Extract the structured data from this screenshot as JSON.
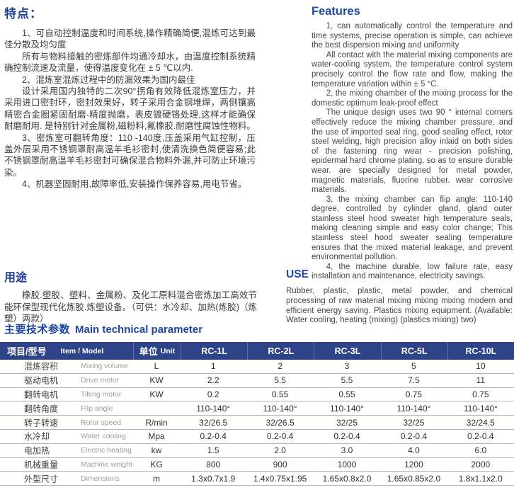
{
  "colors": {
    "heading_blue_cn": "#1e3f96",
    "heading_blue_en": "#1c4aa4",
    "table_header_bg": "#2e4388",
    "table_header_text": "#ffffff",
    "row_divider": "#a6b3c9",
    "body_text": "#3c3c3c",
    "muted_label": "#9d9d9d"
  },
  "features_cn": {
    "heading": "特点：",
    "paragraphs": [
      "1、可自动控制温度和时间系统,操作精确简便,混炼可达到最佳分散及均匀度",
      "所有与物料接触的密炼部件均通冷却水，由温度控制系统精确控制流速及流量，使得温度变化在 ± 5 ℃以内.",
      "2、混炼室混炼过程中的防漏效果为国内最佳",
      "设计采用国内独特的二次90°拐角有效降低混炼室压力，并采用进口密封环，密封效果好，转子采用合金钢堆焊，两侧镶高精密合金圈紧固耐磨-精度抛磨，表皮镀硬铬处理,这样才能确保耐磨耐用. 是特别针对金属粉,磁粉料,氟橡胶.耐磨性腐蚀性物料。",
      "3、密炼室可翻转角度：110 -140度,压盖采用气缸控制，压盖外层采用不锈钢罩耐高温羊毛衫密封,使清洗换色简便容易;此不锈钢罩耐高温羊毛衫密封可确保混合物料外漏,并可防止环境污染。",
      "4、机器坚固耐用,故障率低,安装操作保养容易,用电节省。"
    ]
  },
  "features_en": {
    "heading": "Features",
    "paragraphs": [
      "1, can automatically control the temperature and time systems, precise operation is simple, can achieve the best dispersion mixing and uniformity",
      "All contact with the material mixing components are water-cooling system, the temperature control system precisely control the flow rate and flow, making the temperature variation within ± 5 °C.",
      "2, the mixing chamber of the mixing process for the domestic optimum leak-proof effect",
      "The unique design uses two 90 ° internal corners effectively reduce the mixing chamber pressure, and the use of imported seal ring, good sealing effect, rotor steel welding, high precision alloy inlaid on both sides of the fastening ring wear - precision polishing, epidermal hard chrome plating, so as to ensure durable wear. are specially designed for metal powder, magnetic materials, fluorine rubber. wear corrosive materials.",
      "3, the mixing chamber can flip angle: 110-140 degree, controlled by cylinder gland, gland outer stainless steel hood sweater high temperature seals, making cleaning simple and easy color change; This stainless steel hood sweater sealing temperature ensures that the mixed material leakage, and prevent environmental pollution.",
      "4, the machine durable, low failure rate, easy installation and maintenance, electricity savings."
    ]
  },
  "use_cn": {
    "heading": "用途",
    "paragraph": "橡胶.塑胶、塑料、金属粉、及化工原料混合密炼加工高效节能环保型现代化炼胶.炼塑设备。（可供：水冷却、加热(炼胶)（炼塑）两款）"
  },
  "use_en": {
    "heading": "USE",
    "paragraph": "Rubber, plastic, plastic, metal powder, and chemical processing of raw material mixing mixing mixing modern and efficient energy saving. Plastics mixing equipment. (Available: Water cooling, heating (mixing) (plastics mixing) two)"
  },
  "params": {
    "heading_cn": "主要技术参数",
    "heading_en": "Main technical parameter",
    "table": {
      "header": {
        "item_cn": "项目/型号",
        "item_en": "Item / Model",
        "unit_cn": "单位",
        "unit_en": "Unit",
        "models": [
          "RC-1L",
          "RC-2L",
          "RC-3L",
          "RC-5L",
          "RC-10L"
        ]
      },
      "rows": [
        {
          "cn": "混炼容积",
          "en": "Mixing volume",
          "unit": "L",
          "values": [
            "1",
            "2",
            "3",
            "5",
            "10"
          ]
        },
        {
          "cn": "驱动电机",
          "en": "Drive motor",
          "unit": "KW",
          "values": [
            "2.2",
            "5.5",
            "5.5",
            "7.5",
            "11"
          ]
        },
        {
          "cn": "翻转电机",
          "en": "Tilting motor",
          "unit": "KW",
          "values": [
            "0.2",
            "0.55",
            "0.55",
            "0.75",
            "0.75"
          ]
        },
        {
          "cn": "翻转角度",
          "en": "Flip angle",
          "unit": "",
          "values": [
            "110-140°",
            "110-140°",
            "110-140°",
            "110-140°",
            "110-140°"
          ]
        },
        {
          "cn": "转子转速",
          "en": "Rotor speed",
          "unit": "R/min",
          "values": [
            "32/26.5",
            "32/26.5",
            "32/25",
            "32/25",
            "32/24.5"
          ]
        },
        {
          "cn": "水冷却",
          "en": "Water cooling",
          "unit": "Mpa",
          "values": [
            "0.2-0.4",
            "0.2-0.4",
            "0.2-0.4",
            "0.2-0.4",
            "0.2-0.4"
          ]
        },
        {
          "cn": "电加热",
          "en": "Electric heating",
          "unit": "kw",
          "values": [
            "1.5",
            "2.0",
            "3.0",
            "4.0",
            "6.0"
          ]
        },
        {
          "cn": "机械重量",
          "en": "Machine weight",
          "unit": "KG",
          "values": [
            "800",
            "900",
            "1000",
            "1200",
            "2000"
          ]
        },
        {
          "cn": "外型尺寸",
          "en": "Dimensions",
          "unit": "m",
          "values": [
            "1.3x0.7x1.9",
            "1.4x0.75x1.95",
            "1.65x0.8x2.0",
            "1.65x0.85x2.0",
            "1.8x1.1x2.0"
          ]
        }
      ]
    }
  }
}
